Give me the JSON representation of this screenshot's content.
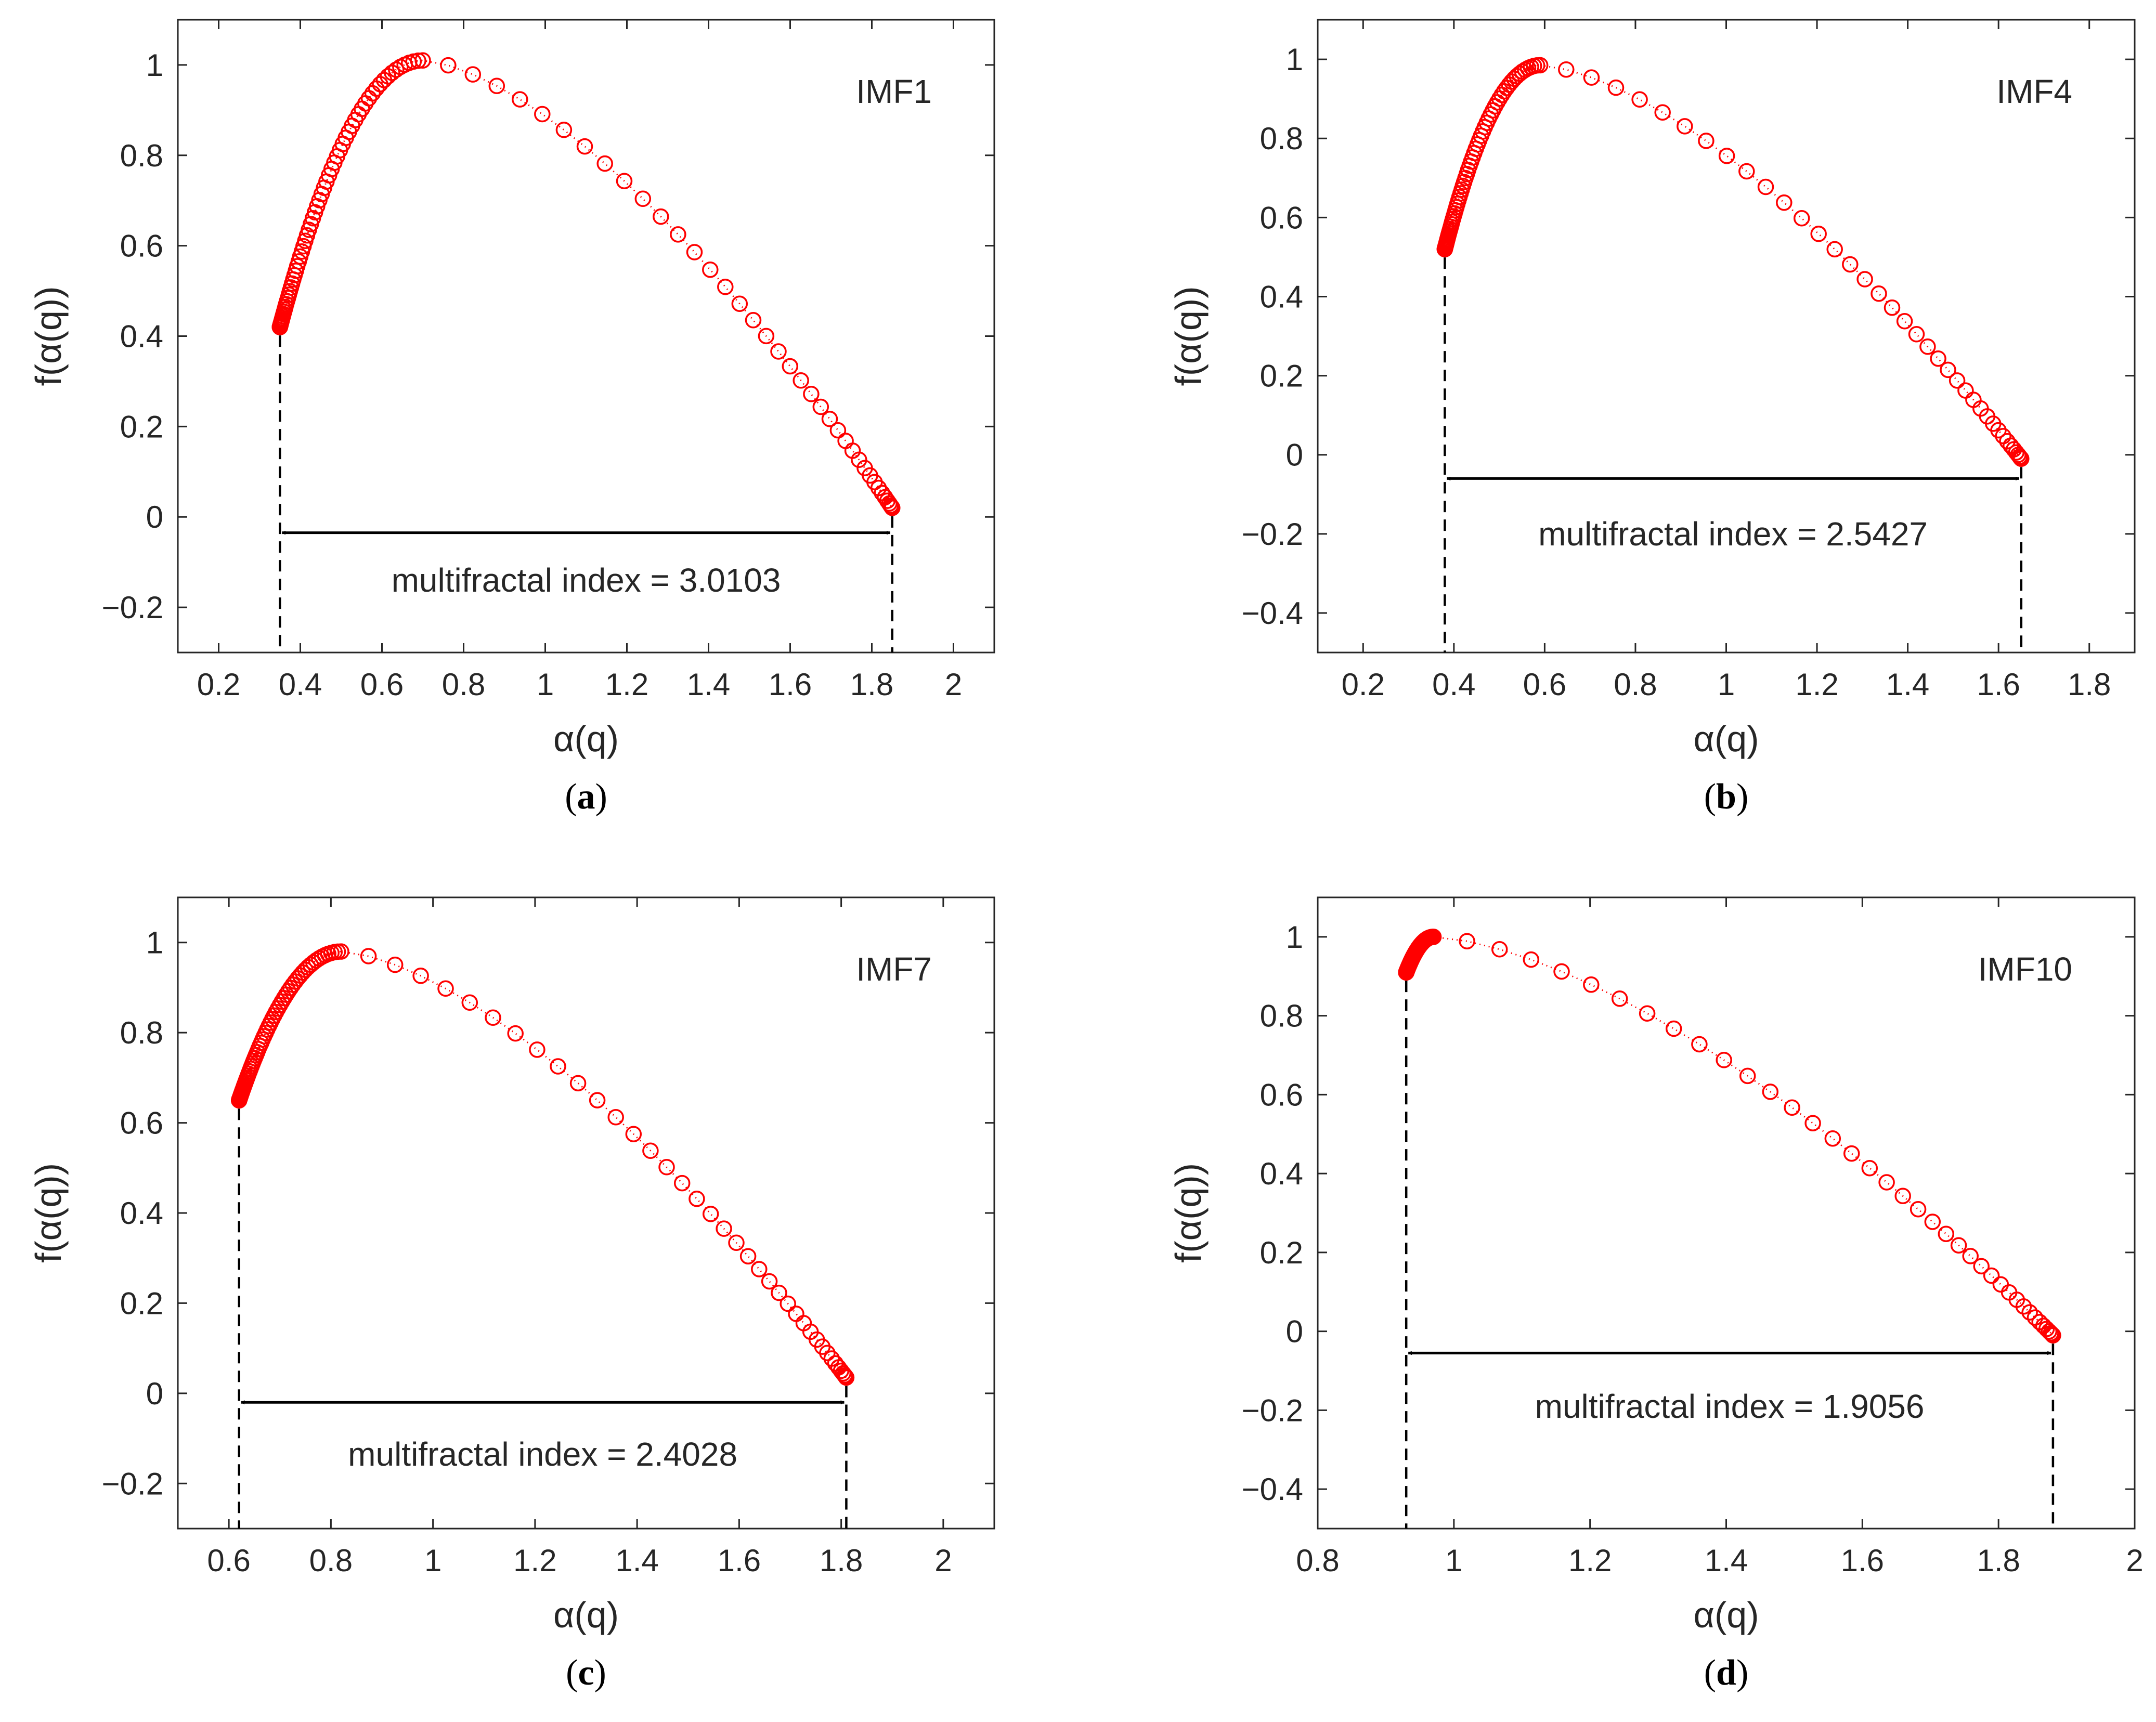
{
  "colors": {
    "series": "#ff0000",
    "axis": "#262626",
    "annotation": "#000000",
    "background": "#ffffff"
  },
  "chart_data": [
    {
      "type": "scatter",
      "panel_label": "a",
      "legend": "IMF1",
      "legend_position": "top-right",
      "xlabel": "α(q)",
      "ylabel": "f(α(q))",
      "xlim": [
        0.1,
        2.1
      ],
      "ylim": [
        -0.3,
        1.1
      ],
      "xticks": [
        0.2,
        0.4,
        0.6,
        0.8,
        1,
        1.2,
        1.4,
        1.6,
        1.8,
        2
      ],
      "xtick_labels": [
        "0.2",
        "0.4",
        "0.6",
        "0.8",
        "1",
        "1.2",
        "1.4",
        "1.6",
        "1.8",
        "2"
      ],
      "yticks": [
        -0.2,
        0,
        0.2,
        0.4,
        0.6,
        0.8,
        1
      ],
      "ytick_labels": [
        "−0.2",
        "0",
        "0.2",
        "0.4",
        "0.6",
        "0.8",
        "1"
      ],
      "alpha_min": 0.35,
      "alpha_max": 1.85,
      "alpha_peak": 0.7,
      "f_left": 0.42,
      "f_right": 0.02,
      "f_peak": 1.01,
      "arrow_y": -0.035,
      "annotation": "multifractal index = 3.0103",
      "annotation_y": -0.14
    },
    {
      "type": "scatter",
      "panel_label": "b",
      "legend": "IMF4",
      "legend_position": "top-right",
      "xlabel": "α(q)",
      "ylabel": "f(α(q))",
      "xlim": [
        0.1,
        1.9
      ],
      "ylim": [
        -0.5,
        1.1
      ],
      "xticks": [
        0.2,
        0.4,
        0.6,
        0.8,
        1,
        1.2,
        1.4,
        1.6,
        1.8
      ],
      "xtick_labels": [
        "0.2",
        "0.4",
        "0.6",
        "0.8",
        "1",
        "1.2",
        "1.4",
        "1.6",
        "1.8"
      ],
      "yticks": [
        -0.4,
        -0.2,
        0,
        0.2,
        0.4,
        0.6,
        0.8,
        1
      ],
      "ytick_labels": [
        "−0.4",
        "−0.2",
        "0",
        "0.2",
        "0.4",
        "0.6",
        "0.8",
        "1"
      ],
      "alpha_min": 0.38,
      "alpha_max": 1.65,
      "alpha_peak": 0.59,
      "f_left": 0.52,
      "f_right": -0.01,
      "f_peak": 0.985,
      "arrow_y": -0.06,
      "annotation": "multifractal index = 2.5427",
      "annotation_y": -0.2
    },
    {
      "type": "scatter",
      "panel_label": "c",
      "legend": "IMF7",
      "legend_position": "top-right",
      "xlabel": "α(q)",
      "ylabel": "f(α(q))",
      "xlim": [
        0.5,
        2.1
      ],
      "ylim": [
        -0.3,
        1.1
      ],
      "xticks": [
        0.6,
        0.8,
        1,
        1.2,
        1.4,
        1.6,
        1.8,
        2
      ],
      "xtick_labels": [
        "0.6",
        "0.8",
        "1",
        "1.2",
        "1.4",
        "1.6",
        "1.8",
        "2"
      ],
      "yticks": [
        -0.2,
        0,
        0.2,
        0.4,
        0.6,
        0.8,
        1
      ],
      "ytick_labels": [
        "−0.2",
        "0",
        "0.2",
        "0.4",
        "0.6",
        "0.8",
        "1"
      ],
      "alpha_min": 0.62,
      "alpha_max": 1.81,
      "alpha_peak": 0.82,
      "f_left": 0.65,
      "f_right": 0.035,
      "f_peak": 0.98,
      "arrow_y": -0.02,
      "annotation": "multifractal index = 2.4028",
      "annotation_y": -0.135
    },
    {
      "type": "scatter",
      "panel_label": "d",
      "legend": "IMF10",
      "legend_position": "top-right",
      "xlabel": "α(q)",
      "ylabel": "f(α(q))",
      "xlim": [
        0.8,
        2
      ],
      "ylim": [
        -0.5,
        1.1
      ],
      "xticks": [
        0.8,
        1,
        1.2,
        1.4,
        1.6,
        1.8,
        2
      ],
      "xtick_labels": [
        "0.8",
        "1",
        "1.2",
        "1.4",
        "1.6",
        "1.8",
        "2"
      ],
      "yticks": [
        -0.4,
        -0.2,
        0,
        0.2,
        0.4,
        0.6,
        0.8,
        1
      ],
      "ytick_labels": [
        "−0.4",
        "−0.2",
        "0",
        "0.2",
        "0.4",
        "0.6",
        "0.8",
        "1"
      ],
      "alpha_min": 0.93,
      "alpha_max": 1.88,
      "alpha_peak": 0.97,
      "f_left": 0.91,
      "f_right": -0.01,
      "f_peak": 1.0,
      "arrow_y": -0.055,
      "annotation": "multifractal index = 1.9056",
      "annotation_y": -0.19
    }
  ]
}
